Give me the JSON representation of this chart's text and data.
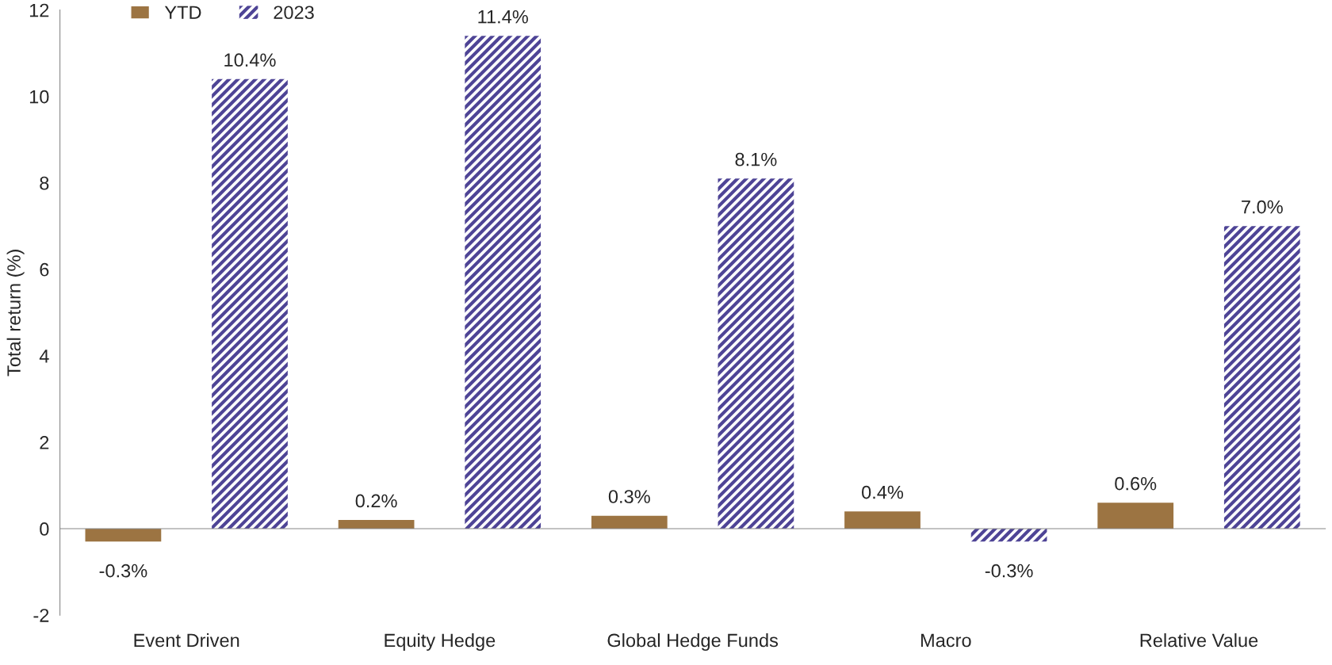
{
  "chart_data": {
    "type": "bar",
    "ylabel": "Total return (%)",
    "categories": [
      "Event Driven",
      "Equity Hedge",
      "Global Hedge Funds",
      "Macro",
      "Relative Value"
    ],
    "series": [
      {
        "name": "YTD",
        "color": "#9c7442",
        "values": [
          -0.3,
          0.2,
          0.3,
          0.4,
          0.6
        ],
        "value_labels": [
          "-0.3%",
          "0.2%",
          "0.3%",
          "0.4%",
          "0.6%"
        ]
      },
      {
        "name": "2023",
        "color": "#4e4496",
        "values": [
          10.4,
          11.4,
          8.1,
          -0.3,
          7.0
        ],
        "value_labels": [
          "10.4%",
          "11.4%",
          "8.1%",
          "-0.3%",
          "7.0%"
        ]
      }
    ],
    "ylim": [
      -2,
      12
    ],
    "yticks": [
      -2,
      0,
      2,
      4,
      6,
      8,
      10,
      12
    ],
    "legend": "top left"
  }
}
